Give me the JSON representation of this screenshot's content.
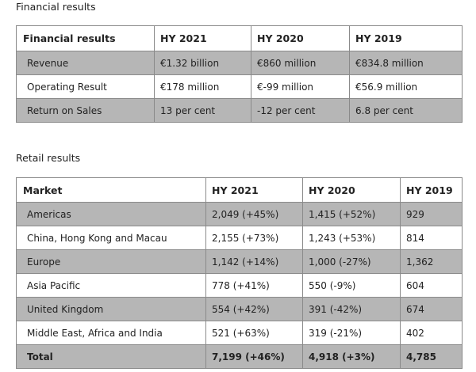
{
  "financial": {
    "section_title": "Financial results",
    "headers": [
      "Financial results",
      "HY 2021",
      "HY 2020",
      "HY 2019"
    ],
    "rows": [
      [
        "Revenue",
        "€1.32 billion",
        "€860 million",
        "€834.8 million"
      ],
      [
        "Operating Result",
        "€178 million",
        "€-99 million",
        "€56.9 million"
      ],
      [
        "Return on Sales",
        "13 per cent",
        "-12 per cent",
        "6.8 per cent"
      ]
    ]
  },
  "retail": {
    "section_title": "Retail results",
    "headers": [
      "Market",
      "HY 2021",
      "HY 2020",
      "HY 2019"
    ],
    "rows": [
      [
        "Americas",
        "2,049 (+45%)",
        "1,415 (+52%)",
        "929"
      ],
      [
        "China, Hong Kong and Macau",
        "2,155 (+73%)",
        "1,243 (+53%)",
        "814"
      ],
      [
        "Europe",
        "1,142 (+14%)",
        "1,000 (-27%)",
        "1,362"
      ],
      [
        "Asia Pacific",
        "778 (+41%)",
        "550 (-9%)",
        "604"
      ],
      [
        "United Kingdom",
        "554 (+42%)",
        "391 (-42%)",
        "674"
      ],
      [
        "Middle East, Africa and India",
        "521 (+63%)",
        "319 (-21%)",
        "402"
      ],
      [
        "Total",
        "7,199 (+46%)",
        "4,918 (+3%)",
        "4,785"
      ]
    ]
  }
}
